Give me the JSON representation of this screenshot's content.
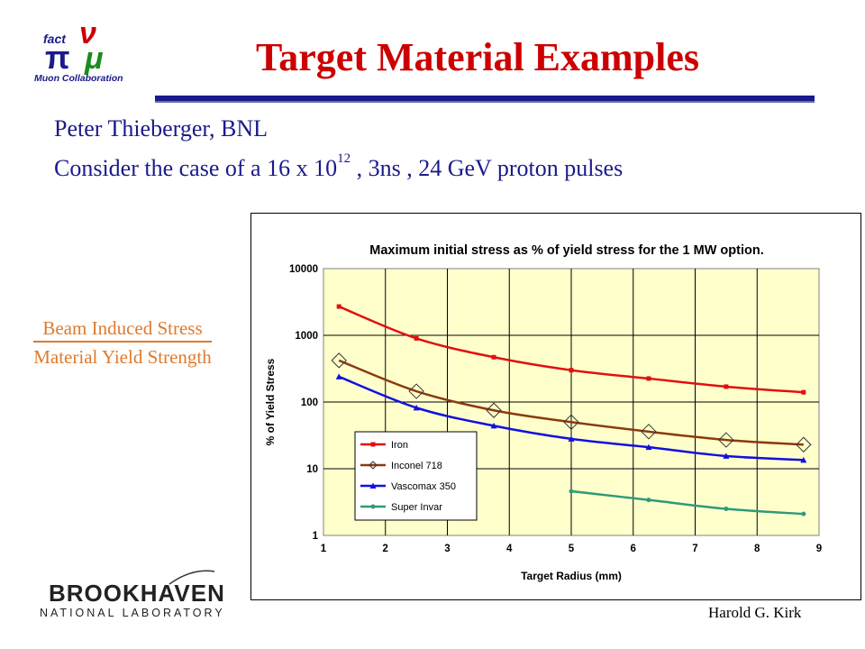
{
  "header": {
    "title": "Target Material Examples",
    "author_line": "Peter Thieberger, BNL",
    "consider_prefix": "Consider the case of a 16 x 10",
    "consider_exp": "12",
    "consider_suffix": " , 3ns , 24 GeV proton pulses"
  },
  "logo": {
    "word_fact": "fact",
    "word_collab": "Muon Collaboration"
  },
  "ratio": {
    "numerator": "Beam Induced Stress",
    "denominator": "Material Yield Strength"
  },
  "bnl_logo": {
    "name": "BROOKHAVEN",
    "sub": "NATIONAL LABORATORY"
  },
  "footer": {
    "author": "Harold G. Kirk"
  },
  "colors": {
    "title": "#cc0000",
    "text": "#1a1a8c",
    "ratio": "#e07a2c",
    "plot_bg": "#ffffcc"
  },
  "chart_data": {
    "type": "line",
    "title": "Maximum initial stress as % of yield stress for the 1 MW option.",
    "xlabel": "Target Radius (mm)",
    "ylabel": "% of Yield Stress",
    "xlim": [
      1,
      9
    ],
    "ylim": [
      1,
      10000
    ],
    "yscale": "log",
    "grid": true,
    "legend": "lower-left",
    "x_ticks": [
      "1",
      "2",
      "3",
      "4",
      "5",
      "6",
      "7",
      "8",
      "9"
    ],
    "y_ticks": [
      "1",
      "10",
      "100",
      "1000",
      "10000"
    ],
    "series": [
      {
        "name": "Iron",
        "color": "#e01010",
        "marker": "square",
        "x": [
          1.25,
          2.5,
          3.75,
          5.0,
          6.25,
          7.5,
          8.75
        ],
        "y": [
          2700,
          900,
          470,
          300,
          225,
          170,
          140
        ]
      },
      {
        "name": "Inconel 718",
        "color": "#8b3a0e",
        "marker": "diamond",
        "x": [
          1.25,
          2.5,
          3.75,
          5.0,
          6.25,
          7.5,
          8.75
        ],
        "y": [
          420,
          145,
          75,
          50,
          36,
          27,
          23
        ]
      },
      {
        "name": "Vascomax 350",
        "color": "#1010e0",
        "marker": "triangle",
        "x": [
          1.25,
          2.5,
          3.75,
          5.0,
          6.25,
          7.5,
          8.75
        ],
        "y": [
          240,
          82,
          44,
          28,
          21,
          15.5,
          13.5
        ]
      },
      {
        "name": "Super Invar",
        "color": "#2e9a7a",
        "marker": "dot",
        "x": [
          5.0,
          6.25,
          7.5,
          8.75
        ],
        "y": [
          4.6,
          3.4,
          2.5,
          2.1
        ]
      }
    ]
  }
}
